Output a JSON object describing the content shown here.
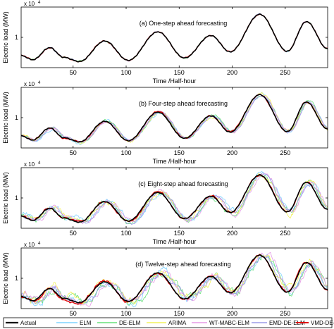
{
  "chart_data": [
    {
      "type": "line",
      "title": "(a) One-step ahead forecasting",
      "xlabel": "Time /Half-hour",
      "ylabel": "Electric load (MW)",
      "exponent_label": "x 10",
      "exponent_power": "4",
      "xlim": [
        1,
        290
      ],
      "ylim": [
        0.5,
        1.5
      ],
      "xticks": [
        50,
        100,
        150,
        200,
        250
      ],
      "yticks": [
        1
      ],
      "grid": false,
      "series_order": [
        "ELM",
        "DE-ELM",
        "ARIMA",
        "WT-MABC-ELM",
        "EMD-DE-ELM",
        "VMD-DE-ELM",
        "Actual"
      ],
      "noise": {
        "ELM": 0.006,
        "DE-ELM": 0.006,
        "ARIMA": 0.006,
        "WT-MABC-ELM": 0.006,
        "EMD-DE-ELM": 0.006,
        "VMD-DE-ELM": 0.004,
        "Actual": 0
      }
    },
    {
      "type": "line",
      "title": "(b) Four-step ahead forecasting",
      "xlabel": "Time /Half-hour",
      "ylabel": "Electric load (MW)",
      "exponent_label": "x 10",
      "exponent_power": "4",
      "xlim": [
        1,
        290
      ],
      "ylim": [
        0.5,
        1.5
      ],
      "xticks": [
        50,
        100,
        150,
        200,
        250
      ],
      "yticks": [
        1
      ],
      "grid": false,
      "series_order": [
        "ELM",
        "DE-ELM",
        "ARIMA",
        "WT-MABC-ELM",
        "EMD-DE-ELM",
        "VMD-DE-ELM",
        "Actual"
      ],
      "noise": {
        "ELM": 0.022,
        "DE-ELM": 0.02,
        "ARIMA": 0.022,
        "WT-MABC-ELM": 0.018,
        "EMD-DE-ELM": 0.016,
        "VMD-DE-ELM": 0.008,
        "Actual": 0
      }
    },
    {
      "type": "line",
      "title": "(c) Eight-step ahead forecasting",
      "xlabel": "Time /Half-hour",
      "ylabel": "Electric load (MW)",
      "exponent_label": "x 10",
      "exponent_power": "4",
      "xlim": [
        1,
        290
      ],
      "ylim": [
        0.5,
        1.5
      ],
      "xticks": [
        50,
        100,
        150,
        200,
        250
      ],
      "yticks": [
        1
      ],
      "grid": false,
      "series_order": [
        "ELM",
        "DE-ELM",
        "ARIMA",
        "WT-MABC-ELM",
        "EMD-DE-ELM",
        "VMD-DE-ELM",
        "Actual"
      ],
      "noise": {
        "ELM": 0.045,
        "DE-ELM": 0.04,
        "ARIMA": 0.045,
        "WT-MABC-ELM": 0.035,
        "EMD-DE-ELM": 0.03,
        "VMD-DE-ELM": 0.012,
        "Actual": 0
      }
    },
    {
      "type": "line",
      "title": "(d) Twelve-step ahead forecasting",
      "xlabel": "Time /Half-hour",
      "ylabel": "Electric load (MW)",
      "exponent_label": "x 10",
      "exponent_power": "4",
      "xlim": [
        1,
        290
      ],
      "ylim": [
        0.5,
        1.5
      ],
      "xticks": [
        50,
        100,
        150,
        200,
        250
      ],
      "yticks": [
        1
      ],
      "grid": false,
      "series_order": [
        "ELM",
        "DE-ELM",
        "ARIMA",
        "WT-MABC-ELM",
        "EMD-DE-ELM",
        "VMD-DE-ELM",
        "Actual"
      ],
      "noise": {
        "ELM": 0.065,
        "DE-ELM": 0.06,
        "ARIMA": 0.065,
        "WT-MABC-ELM": 0.05,
        "EMD-DE-ELM": 0.045,
        "VMD-DE-ELM": 0.018,
        "Actual": 0
      }
    }
  ],
  "actual_profile": {
    "x": [
      1,
      12,
      28,
      41,
      56,
      80,
      102,
      130,
      155,
      180,
      198,
      226,
      252,
      270,
      290
    ],
    "y": [
      0.7,
      0.63,
      0.83,
      0.67,
      0.6,
      0.94,
      0.62,
      1.09,
      0.66,
      1.03,
      0.76,
      1.38,
      0.77,
      1.26,
      0.81
    ]
  },
  "legend": [
    {
      "name": "Actual",
      "color": "#000000",
      "width": 1.6
    },
    {
      "name": "ELM",
      "color": "#7fd3ff",
      "width": 0.8
    },
    {
      "name": "DE-ELM",
      "color": "#66e07a",
      "width": 0.8
    },
    {
      "name": "ARIMA",
      "color": "#f2f25a",
      "width": 0.8
    },
    {
      "name": "WT-MABC-ELM",
      "color": "#e59ae5",
      "width": 0.8
    },
    {
      "name": "EMD-DE-ELM",
      "color": "#9c9ce8",
      "width": 0.8
    },
    {
      "name": "VMD-DE-ELM",
      "color": "#e00000",
      "width": 1.4
    }
  ]
}
